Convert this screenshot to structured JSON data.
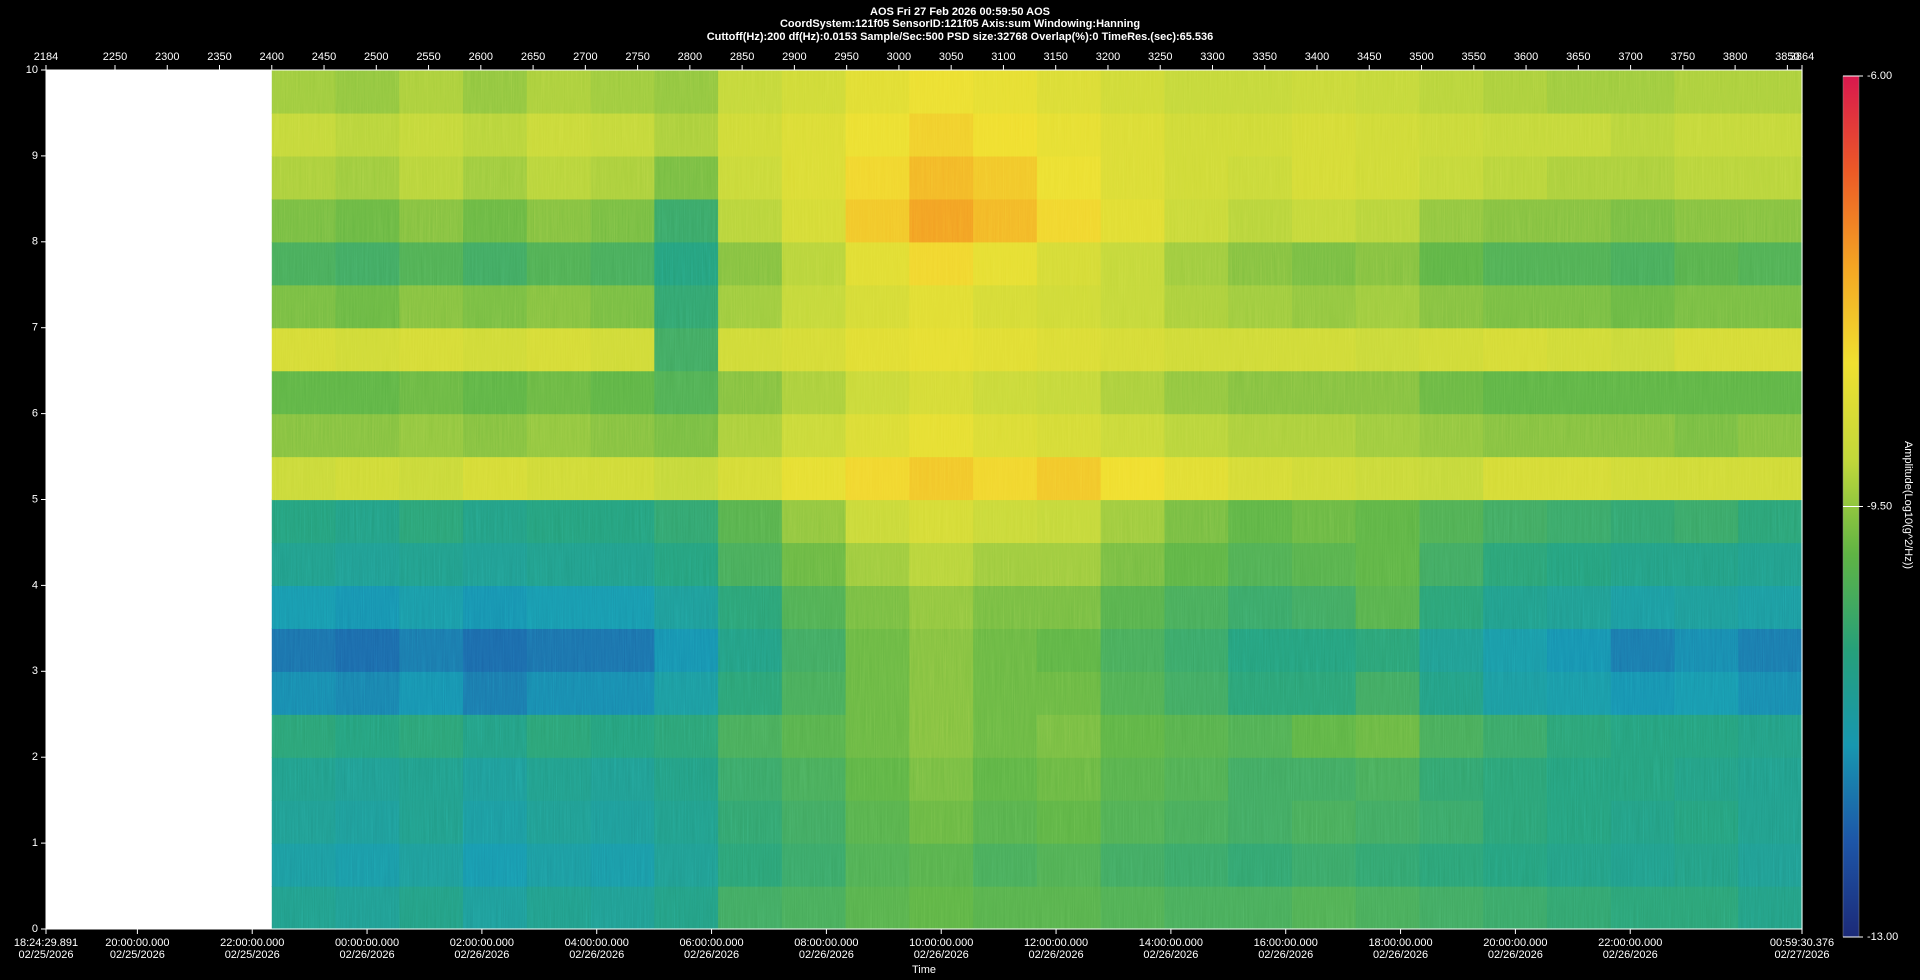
{
  "header": {
    "line1": "AOS  Fri 27 Feb 2026 00:59:50  AOS",
    "line2": "CoordSystem:121f05   SensorID:121f05   Axis:sum    Windowing:Hanning",
    "line3": "Cuttoff(Hz):200      df(Hz):0.0153      Sample/Sec:500      PSD size:32768      Overlap(%):0      TimeRes.(sec):65.536"
  },
  "chart_data": {
    "type": "heatmap",
    "xlabel": "Time",
    "xlim": [
      2184,
      3864
    ],
    "ylim": [
      0,
      10
    ],
    "zlim": [
      -13,
      -6
    ],
    "colorbar_label": "Amplitude(Log10(g^2/Hz))",
    "colormap": [
      "#1c2a78",
      "#1d56a8",
      "#1797b0",
      "#26a07a",
      "#5fb444",
      "#c3d83a",
      "#f0e030",
      "#f4a623",
      "#ec5a26",
      "#d9184e"
    ],
    "x2ticks": [
      2184,
      2250,
      2300,
      2350,
      2400,
      2450,
      2500,
      2550,
      2600,
      2650,
      2700,
      2750,
      2800,
      2850,
      2900,
      2950,
      3000,
      3050,
      3100,
      3150,
      3200,
      3250,
      3300,
      3350,
      3400,
      3450,
      3500,
      3550,
      3600,
      3650,
      3700,
      3750,
      3800,
      3850,
      3864
    ],
    "xticks": [
      {
        "value": 2184,
        "label": "18:24:29.891",
        "date": "02/25/2026"
      },
      {
        "value": 2271.44,
        "label": "20:00:00.000",
        "date": "02/25/2026"
      },
      {
        "value": 2381.3,
        "label": "22:00:00.000",
        "date": "02/25/2026"
      },
      {
        "value": 2491.16,
        "label": "00:00:00.000",
        "date": "02/26/2026"
      },
      {
        "value": 2601.03,
        "label": "02:00:00.000",
        "date": "02/26/2026"
      },
      {
        "value": 2710.89,
        "label": "04:00:00.000",
        "date": "02/26/2026"
      },
      {
        "value": 2820.75,
        "label": "06:00:00.000",
        "date": "02/26/2026"
      },
      {
        "value": 2930.62,
        "label": "08:00:00.000",
        "date": "02/26/2026"
      },
      {
        "value": 3040.48,
        "label": "10:00:00.000",
        "date": "02/26/2026"
      },
      {
        "value": 3150.34,
        "label": "12:00:00.000",
        "date": "02/26/2026"
      },
      {
        "value": 3260.21,
        "label": "14:00:00.000",
        "date": "02/26/2026"
      },
      {
        "value": 3370.07,
        "label": "16:00:00.000",
        "date": "02/26/2026"
      },
      {
        "value": 3479.93,
        "label": "18:00:00.000",
        "date": "02/26/2026"
      },
      {
        "value": 3589.8,
        "label": "20:00:00.000",
        "date": "02/26/2026"
      },
      {
        "value": 3699.66,
        "label": "22:00:00.000",
        "date": "02/26/2026"
      },
      {
        "value": 3864,
        "label": "00:59:30.376",
        "date": "02/27/2026"
      }
    ],
    "yticks": [
      0,
      1,
      2,
      3,
      4,
      5,
      6,
      7,
      8,
      9,
      10
    ],
    "zticks": [
      {
        "value": -6,
        "label": "-6.00"
      },
      {
        "value": -9.5,
        "label": "-9.50"
      },
      {
        "value": -13,
        "label": "-13.00"
      }
    ],
    "x": [
      2400,
      2461,
      2522,
      2583,
      2644,
      2705,
      2766,
      2827,
      2888,
      2949,
      3010,
      3071,
      3132,
      3193,
      3254,
      3315,
      3376,
      3437,
      3498,
      3559,
      3620,
      3681,
      3742,
      3803,
      3864
    ],
    "y": [
      0,
      0.5,
      1,
      1.5,
      2,
      2.5,
      3,
      3.5,
      4,
      4.5,
      5,
      5.5,
      6,
      6.5,
      7,
      7.5,
      8,
      8.5,
      9,
      9.5,
      10
    ],
    "values": [
      [
        -10.9,
        -11.0,
        -10.8,
        -11.1,
        -10.9,
        -11.0,
        -10.8,
        -10.3,
        -10.2,
        -10.0,
        -9.9,
        -10.0,
        -10.0,
        -10.1,
        -10.2,
        -10.2,
        -10.1,
        -10.2,
        -10.3,
        -10.4,
        -10.5,
        -10.6,
        -10.6,
        -10.8
      ],
      [
        -11.2,
        -11.3,
        -11.1,
        -11.4,
        -11.2,
        -11.3,
        -11.0,
        -10.6,
        -10.4,
        -10.1,
        -10.0,
        -10.2,
        -10.1,
        -10.3,
        -10.4,
        -10.5,
        -10.4,
        -10.5,
        -10.6,
        -10.7,
        -10.8,
        -10.9,
        -10.8,
        -11.0
      ],
      [
        -11.0,
        -11.1,
        -10.9,
        -11.2,
        -11.0,
        -11.1,
        -10.9,
        -10.5,
        -10.3,
        -10.0,
        -9.8,
        -10.0,
        -9.9,
        -10.1,
        -10.2,
        -10.3,
        -10.2,
        -10.3,
        -10.4,
        -10.6,
        -10.7,
        -10.8,
        -10.7,
        -10.9
      ],
      [
        -10.9,
        -11.0,
        -10.9,
        -11.1,
        -10.9,
        -11.0,
        -10.8,
        -10.4,
        -10.2,
        -9.9,
        -9.7,
        -9.9,
        -9.8,
        -10.0,
        -10.1,
        -10.3,
        -10.3,
        -10.2,
        -10.5,
        -10.6,
        -10.7,
        -10.7,
        -10.8,
        -10.9
      ],
      [
        -10.6,
        -10.7,
        -10.6,
        -10.8,
        -10.6,
        -10.7,
        -10.6,
        -10.2,
        -10.0,
        -9.8,
        -9.6,
        -9.8,
        -9.7,
        -9.9,
        -10.0,
        -10.1,
        -9.9,
        -9.8,
        -10.2,
        -10.4,
        -10.6,
        -10.7,
        -10.7,
        -10.8
      ],
      [
        -11.6,
        -11.7,
        -11.5,
        -11.8,
        -11.6,
        -11.6,
        -11.2,
        -10.6,
        -10.2,
        -9.8,
        -9.6,
        -9.8,
        -9.8,
        -10.1,
        -10.3,
        -10.6,
        -10.6,
        -10.3,
        -10.8,
        -11.2,
        -11.3,
        -11.5,
        -11.4,
        -11.6
      ],
      [
        -11.9,
        -12.0,
        -11.8,
        -12.0,
        -11.9,
        -11.9,
        -11.5,
        -10.8,
        -10.3,
        -9.8,
        -9.6,
        -9.8,
        -9.9,
        -10.2,
        -10.4,
        -10.7,
        -10.7,
        -10.6,
        -11.0,
        -11.3,
        -11.5,
        -11.8,
        -11.6,
        -11.8
      ],
      [
        -11.4,
        -11.5,
        -11.3,
        -11.5,
        -11.4,
        -11.4,
        -11.1,
        -10.6,
        -10.1,
        -9.7,
        -9.5,
        -9.7,
        -9.7,
        -10.0,
        -10.2,
        -10.4,
        -10.3,
        -10.0,
        -10.6,
        -10.9,
        -11.0,
        -11.2,
        -11.1,
        -11.2
      ],
      [
        -10.9,
        -11.0,
        -10.9,
        -11.0,
        -10.9,
        -10.9,
        -10.7,
        -10.2,
        -9.8,
        -9.4,
        -9.2,
        -9.4,
        -9.4,
        -9.7,
        -9.9,
        -10.1,
        -10.0,
        -9.9,
        -10.3,
        -10.6,
        -10.7,
        -10.8,
        -10.8,
        -10.9
      ],
      [
        -10.7,
        -10.8,
        -10.6,
        -10.8,
        -10.7,
        -10.7,
        -10.5,
        -10.0,
        -9.5,
        -9.0,
        -8.8,
        -9.0,
        -9.1,
        -9.4,
        -9.7,
        -9.9,
        -9.8,
        -9.9,
        -10.1,
        -10.3,
        -10.4,
        -10.5,
        -10.4,
        -10.6
      ],
      [
        -9.0,
        -8.9,
        -9.0,
        -8.8,
        -8.9,
        -8.9,
        -9.1,
        -8.8,
        -8.5,
        -8.2,
        -8.0,
        -8.2,
        -8.0,
        -8.3,
        -8.6,
        -8.8,
        -8.9,
        -9.0,
        -9.1,
        -8.8,
        -8.8,
        -8.9,
        -8.9,
        -8.9
      ],
      [
        -9.6,
        -9.6,
        -9.5,
        -9.6,
        -9.5,
        -9.6,
        -9.7,
        -9.3,
        -9.0,
        -8.7,
        -8.5,
        -8.7,
        -8.8,
        -9.0,
        -9.2,
        -9.3,
        -9.3,
        -9.4,
        -9.5,
        -9.6,
        -9.6,
        -9.6,
        -9.7,
        -9.6
      ],
      [
        -9.9,
        -9.9,
        -9.8,
        -9.9,
        -9.8,
        -9.9,
        -10.1,
        -9.6,
        -9.3,
        -9.0,
        -8.8,
        -9.0,
        -9.1,
        -9.3,
        -9.5,
        -9.6,
        -9.6,
        -9.6,
        -9.8,
        -9.9,
        -9.9,
        -9.9,
        -9.9,
        -9.9
      ],
      [
        -8.8,
        -8.9,
        -8.8,
        -8.9,
        -8.8,
        -8.9,
        -10.3,
        -8.9,
        -8.8,
        -8.6,
        -8.5,
        -8.6,
        -8.7,
        -8.8,
        -8.9,
        -8.9,
        -8.9,
        -9.0,
        -8.9,
        -8.8,
        -8.9,
        -9.0,
        -8.8,
        -8.8
      ],
      [
        -9.7,
        -9.8,
        -9.6,
        -9.7,
        -9.6,
        -9.7,
        -10.5,
        -9.4,
        -9.1,
        -8.8,
        -8.6,
        -8.8,
        -8.9,
        -9.1,
        -9.3,
        -9.4,
        -9.5,
        -9.4,
        -9.6,
        -9.7,
        -9.7,
        -9.8,
        -9.7,
        -9.7
      ],
      [
        -10.2,
        -10.3,
        -10.1,
        -10.3,
        -10.1,
        -10.2,
        -10.7,
        -9.6,
        -9.2,
        -8.6,
        -8.2,
        -8.5,
        -8.8,
        -9.1,
        -9.4,
        -9.6,
        -9.7,
        -9.6,
        -9.9,
        -10.1,
        -10.1,
        -10.2,
        -10.0,
        -10.1
      ],
      [
        -9.7,
        -9.8,
        -9.6,
        -9.8,
        -9.6,
        -9.7,
        -10.4,
        -9.2,
        -8.8,
        -8.0,
        -7.5,
        -7.8,
        -8.2,
        -8.6,
        -9.0,
        -9.2,
        -9.1,
        -9.2,
        -9.5,
        -9.6,
        -9.6,
        -9.7,
        -9.6,
        -9.6
      ],
      [
        -9.3,
        -9.4,
        -9.2,
        -9.4,
        -9.2,
        -9.3,
        -9.7,
        -9.0,
        -8.7,
        -8.2,
        -7.8,
        -8.0,
        -8.4,
        -8.7,
        -8.9,
        -9.0,
        -8.8,
        -8.9,
        -9.1,
        -9.2,
        -9.3,
        -9.3,
        -9.2,
        -9.2
      ],
      [
        -9.1,
        -9.2,
        -9.1,
        -9.2,
        -9.0,
        -9.1,
        -9.3,
        -8.9,
        -8.7,
        -8.4,
        -8.1,
        -8.3,
        -8.5,
        -8.7,
        -8.9,
        -8.9,
        -8.8,
        -8.9,
        -9.0,
        -9.1,
        -9.1,
        -9.2,
        -9.1,
        -9.1
      ],
      [
        -9.4,
        -9.5,
        -9.3,
        -9.5,
        -9.3,
        -9.4,
        -9.5,
        -9.1,
        -8.9,
        -8.6,
        -8.4,
        -8.5,
        -8.7,
        -8.9,
        -9.1,
        -9.1,
        -9.0,
        -9.1,
        -9.2,
        -9.3,
        -9.4,
        -9.4,
        -9.3,
        -9.3
      ]
    ]
  }
}
